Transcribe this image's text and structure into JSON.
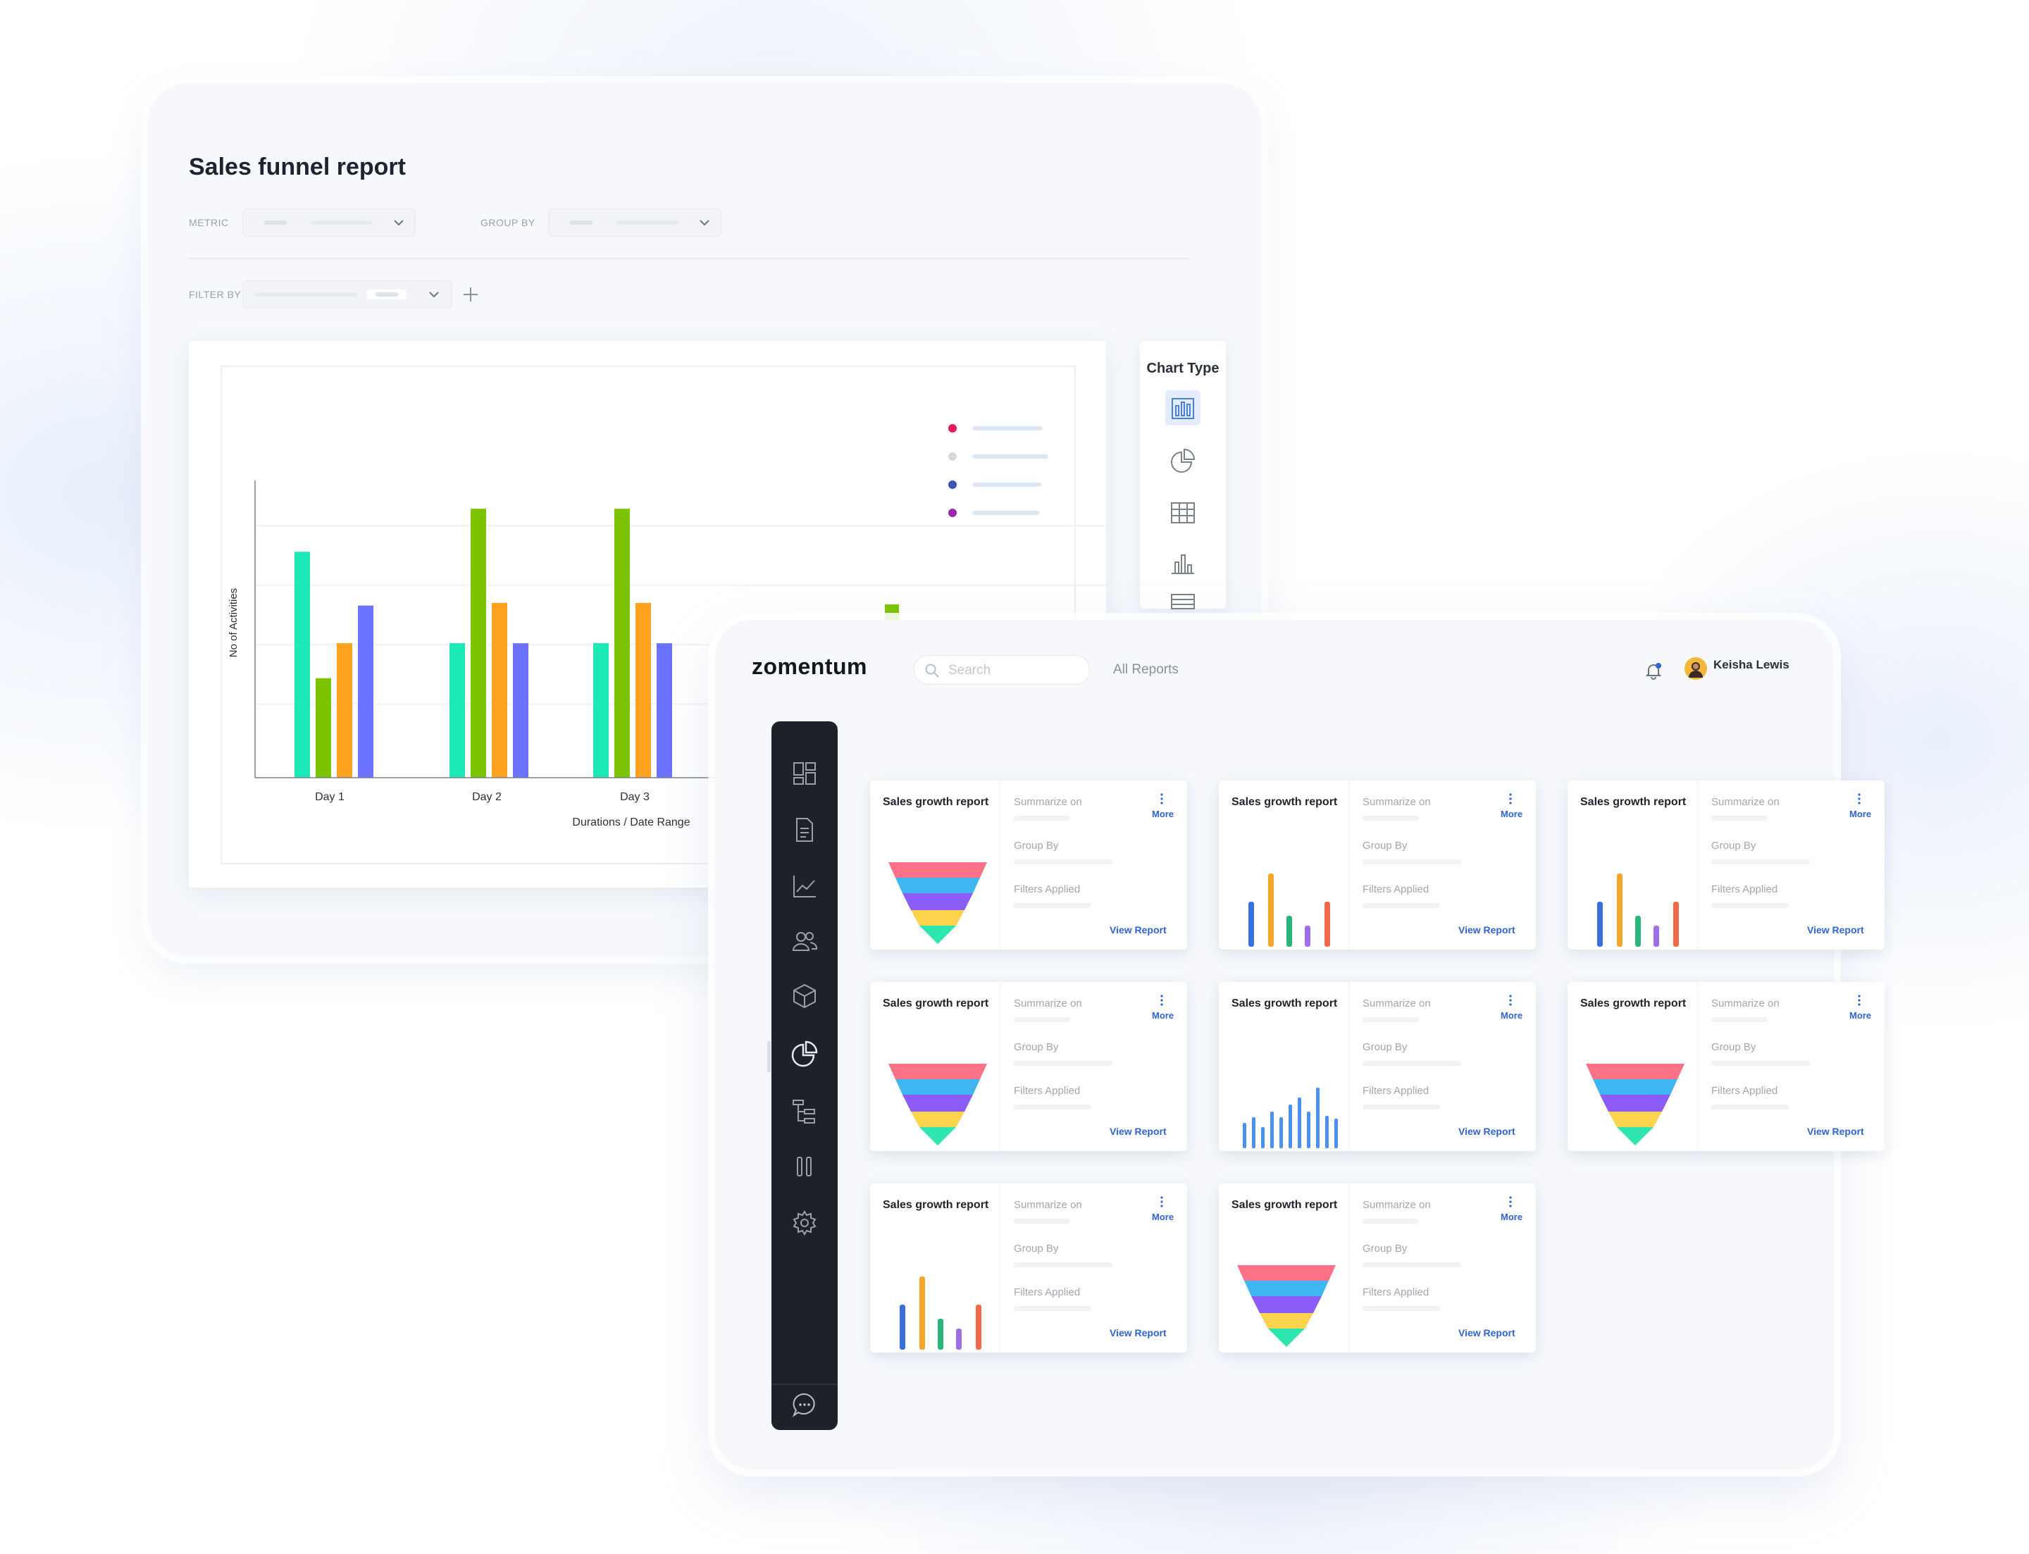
{
  "report": {
    "title": "Sales funnel report",
    "metric_label": "METRIC",
    "group_by_label": "GROUP BY",
    "filter_by_label": "FILTER BY",
    "chart_type_label": "Chart Type",
    "chart_type_icons": [
      "bar-chart-icon",
      "pie-chart-icon",
      "table-icon",
      "column-chart-icon",
      "list-icon"
    ]
  },
  "chart_data": {
    "type": "bar",
    "categories": [
      "Day 1",
      "Day 2",
      "Day 3"
    ],
    "series": [
      {
        "color": "#1de9b6",
        "values": [
          84,
          50,
          50
        ]
      },
      {
        "color": "#7cc400",
        "values": [
          37,
          100,
          100
        ]
      },
      {
        "color": "#ffa21f",
        "values": [
          50,
          65,
          65
        ]
      },
      {
        "color": "#6a72ff",
        "values": [
          64,
          50,
          50
        ]
      }
    ],
    "xlabel": "Durations / Date Range",
    "ylabel": "No of Activities",
    "ylim": [
      0,
      105
    ],
    "grid": true,
    "legend": {
      "position": "top-right",
      "colors": [
        "#e8175d",
        "#d5d9df",
        "#3f51b5",
        "#9c27b0"
      ]
    }
  },
  "dashboard": {
    "logo": "zomentum",
    "search_placeholder": "Search",
    "all_reports": "All Reports",
    "user_name": "Keisha Lewis",
    "sidebar_icons": [
      "dashboard-icon",
      "document-icon",
      "analytics-icon",
      "users-icon",
      "product-box-icon",
      "reports-pie-icon",
      "hierarchy-icon",
      "pipeline-icon",
      "settings-icon",
      "chat-icon"
    ],
    "cards": [
      {
        "title": "Sales growth report",
        "summarize": "Summarize on",
        "group": "Group By",
        "filters": "Filters Applied",
        "more": "More",
        "view": "View Report",
        "viz": "funnel"
      },
      {
        "title": "Sales growth report",
        "summarize": "Summarize on",
        "group": "Group By",
        "filters": "Filters Applied",
        "more": "More",
        "view": "View Report",
        "viz": "bars"
      },
      {
        "title": "Sales growth report",
        "summarize": "Summarize on",
        "group": "Group By",
        "filters": "Filters Applied",
        "more": "More",
        "view": "View Report",
        "viz": "bars"
      },
      {
        "title": "Sales growth report",
        "summarize": "Summarize on",
        "group": "Group By",
        "filters": "Filters Applied",
        "more": "More",
        "view": "View Report",
        "viz": "funnel"
      },
      {
        "title": "Sales growth report",
        "summarize": "Summarize on",
        "group": "Group By",
        "filters": "Filters Applied",
        "more": "More",
        "view": "View Report",
        "viz": "bluebars"
      },
      {
        "title": "Sales growth report",
        "summarize": "Summarize on",
        "group": "Group By",
        "filters": "Filters Applied",
        "more": "More",
        "view": "View Report",
        "viz": "funnel"
      },
      {
        "title": "Sales growth report",
        "summarize": "Summarize on",
        "group": "Group By",
        "filters": "Filters Applied",
        "more": "More",
        "view": "View Report",
        "viz": "bars"
      },
      {
        "title": "Sales growth report",
        "summarize": "Summarize on",
        "group": "Group By",
        "filters": "Filters Applied",
        "more": "More",
        "view": "View Report",
        "viz": "funnel"
      }
    ]
  },
  "colors": {
    "accent": "#2e64d4",
    "sidebar_bg": "#1e2128",
    "funnel": [
      "#fb7185",
      "#3fb6f2",
      "#8b5cf6",
      "#fcd34d",
      "#2ee6b0"
    ],
    "mini_bars": [
      "#3b6fe0",
      "#f4a62a",
      "#2ab67a",
      "#a06ee8",
      "#f06a4a"
    ],
    "blue_bars": "#4a90ee"
  }
}
